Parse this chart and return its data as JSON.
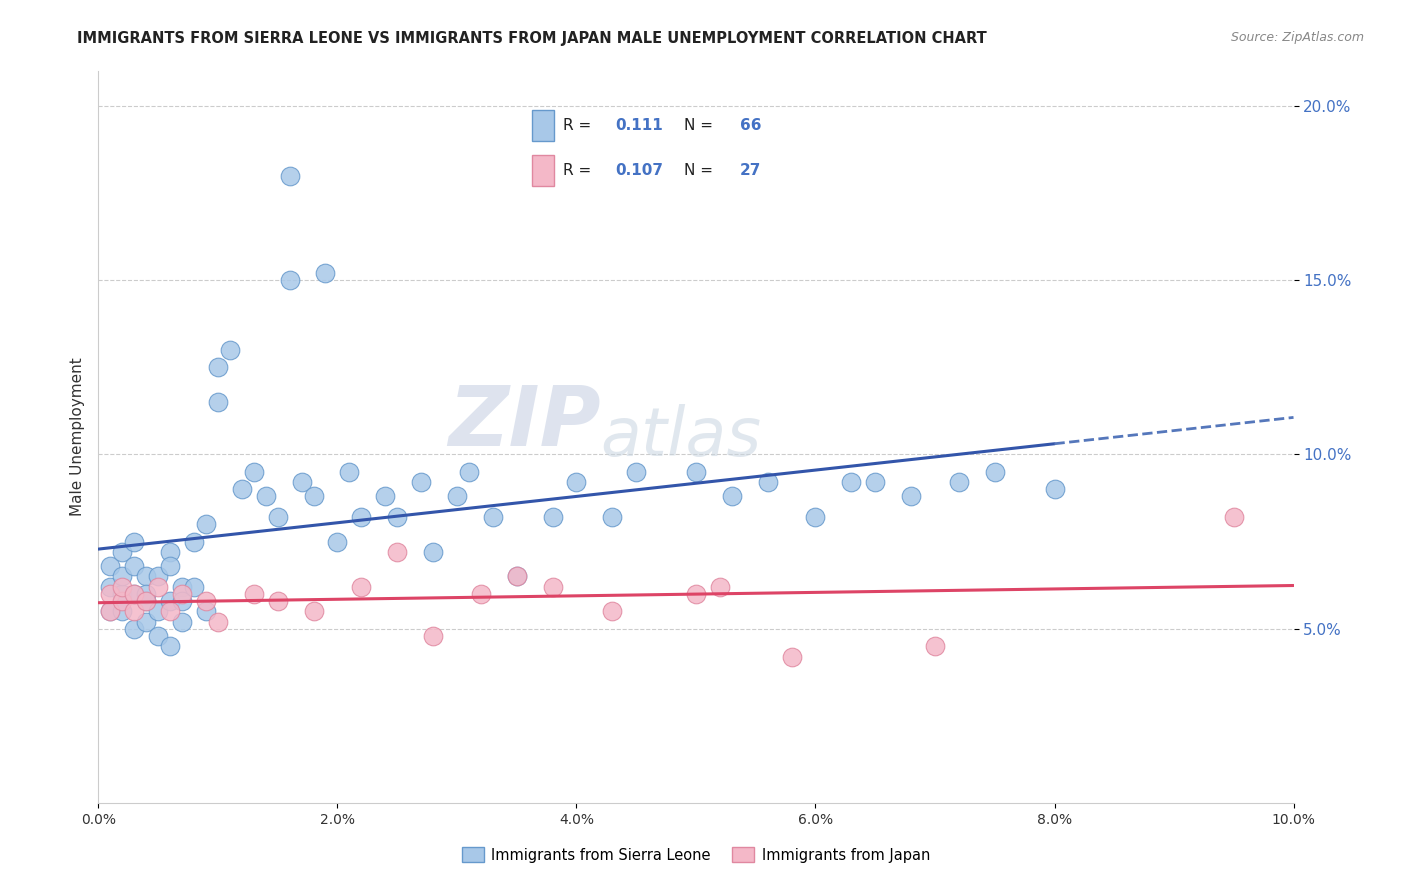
{
  "title": "IMMIGRANTS FROM SIERRA LEONE VS IMMIGRANTS FROM JAPAN MALE UNEMPLOYMENT CORRELATION CHART",
  "source": "Source: ZipAtlas.com",
  "ylabel": "Male Unemployment",
  "xlim": [
    0.0,
    0.1
  ],
  "ylim": [
    0.0,
    0.21
  ],
  "xticks": [
    0.0,
    0.02,
    0.04,
    0.06,
    0.08,
    0.1
  ],
  "yticks": [
    0.05,
    0.1,
    0.15,
    0.2
  ],
  "xtick_labels": [
    "0.0%",
    "2.0%",
    "4.0%",
    "6.0%",
    "8.0%",
    "10.0%"
  ],
  "ytick_labels": [
    "5.0%",
    "10.0%",
    "15.0%",
    "20.0%"
  ],
  "sierra_leone_color": "#a8c8e8",
  "sierra_leone_edge": "#6699cc",
  "japan_color": "#f4b8c8",
  "japan_edge": "#e088a0",
  "trend_sierra_leone_color": "#3355aa",
  "trend_japan_color": "#dd4466",
  "trend_dash_color": "#5577bb",
  "R_sierra": 0.111,
  "N_sierra": 66,
  "R_japan": 0.107,
  "N_japan": 27,
  "watermark_large": "ZIP",
  "watermark_small": "atlas",
  "legend_label_sierra": "Immigrants from Sierra Leone",
  "legend_label_japan": "Immigrants from Japan",
  "sierra_leone_x": [
    0.001,
    0.001,
    0.001,
    0.002,
    0.002,
    0.002,
    0.002,
    0.003,
    0.003,
    0.003,
    0.003,
    0.004,
    0.004,
    0.004,
    0.004,
    0.005,
    0.005,
    0.005,
    0.006,
    0.006,
    0.006,
    0.006,
    0.007,
    0.007,
    0.007,
    0.008,
    0.008,
    0.009,
    0.009,
    0.01,
    0.01,
    0.011,
    0.012,
    0.013,
    0.014,
    0.015,
    0.016,
    0.016,
    0.017,
    0.018,
    0.019,
    0.02,
    0.021,
    0.022,
    0.024,
    0.025,
    0.027,
    0.028,
    0.03,
    0.031,
    0.033,
    0.035,
    0.038,
    0.04,
    0.043,
    0.045,
    0.05,
    0.053,
    0.056,
    0.06,
    0.063,
    0.065,
    0.068,
    0.072,
    0.075,
    0.08
  ],
  "sierra_leone_y": [
    0.068,
    0.062,
    0.055,
    0.06,
    0.065,
    0.055,
    0.072,
    0.05,
    0.06,
    0.068,
    0.075,
    0.052,
    0.058,
    0.065,
    0.06,
    0.048,
    0.055,
    0.065,
    0.045,
    0.058,
    0.072,
    0.068,
    0.052,
    0.062,
    0.058,
    0.062,
    0.075,
    0.055,
    0.08,
    0.115,
    0.125,
    0.13,
    0.09,
    0.095,
    0.088,
    0.082,
    0.18,
    0.15,
    0.092,
    0.088,
    0.152,
    0.075,
    0.095,
    0.082,
    0.088,
    0.082,
    0.092,
    0.072,
    0.088,
    0.095,
    0.082,
    0.065,
    0.082,
    0.092,
    0.082,
    0.095,
    0.095,
    0.088,
    0.092,
    0.082,
    0.092,
    0.092,
    0.088,
    0.092,
    0.095,
    0.09
  ],
  "japan_x": [
    0.001,
    0.001,
    0.002,
    0.002,
    0.003,
    0.003,
    0.004,
    0.005,
    0.006,
    0.007,
    0.009,
    0.01,
    0.013,
    0.015,
    0.018,
    0.022,
    0.025,
    0.028,
    0.032,
    0.035,
    0.038,
    0.043,
    0.05,
    0.052,
    0.058,
    0.07,
    0.095
  ],
  "japan_y": [
    0.06,
    0.055,
    0.058,
    0.062,
    0.055,
    0.06,
    0.058,
    0.062,
    0.055,
    0.06,
    0.058,
    0.052,
    0.06,
    0.058,
    0.055,
    0.062,
    0.072,
    0.048,
    0.06,
    0.065,
    0.062,
    0.055,
    0.06,
    0.062,
    0.042,
    0.045,
    0.082
  ]
}
